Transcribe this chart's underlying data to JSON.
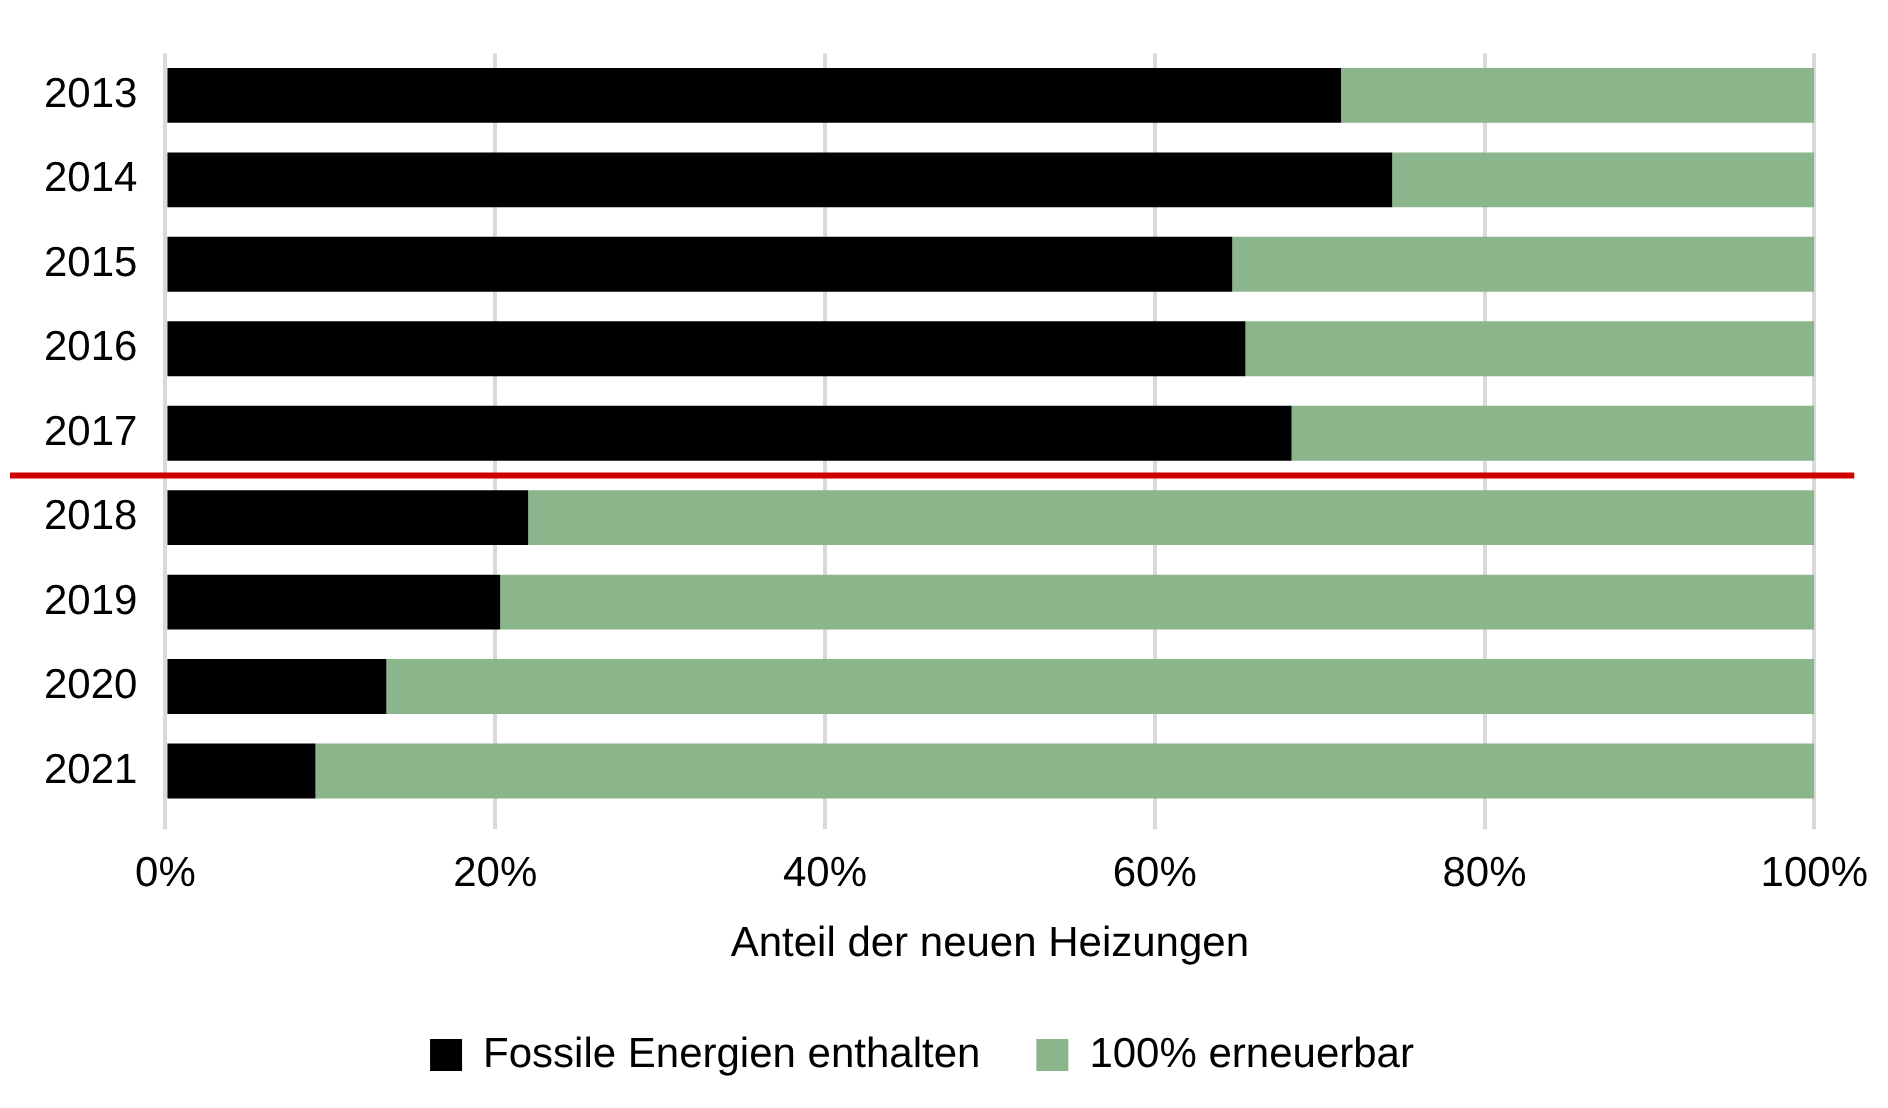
{
  "chart_data": {
    "type": "bar",
    "orientation": "horizontal",
    "stacked": true,
    "x": [
      2013,
      2014,
      2015,
      2016,
      2017,
      2018,
      2019,
      2020,
      2021
    ],
    "series": [
      {
        "name": "Fossile Energien enthalten",
        "color": "#000000",
        "values": [
          71.3,
          74.4,
          64.7,
          65.5,
          68.3,
          22.0,
          20.3,
          13.4,
          9.1
        ]
      },
      {
        "name": "100% erneuerbar",
        "color": "#8bb58b",
        "values": [
          28.7,
          25.6,
          35.3,
          34.5,
          31.7,
          78.0,
          79.7,
          86.6,
          90.9
        ]
      }
    ],
    "xlim": [
      0,
      100
    ],
    "xticks": [
      {
        "value": 0,
        "label": "0%"
      },
      {
        "value": 20,
        "label": "20%"
      },
      {
        "value": 40,
        "label": "40%"
      },
      {
        "value": 60,
        "label": "60%"
      },
      {
        "value": 80,
        "label": "80%"
      },
      {
        "value": 100,
        "label": "100%"
      }
    ],
    "ylim": [
      2021.5,
      2012.5
    ],
    "yticks": [
      2013,
      2014,
      2015,
      2016,
      2017,
      2018,
      2019,
      2020,
      2021
    ],
    "xlabel": "Anteil der neuen Heizungen",
    "grid": "x",
    "legend": "bottom",
    "ref_lines": [
      {
        "axis": "y",
        "value": 2017.5,
        "color": "#d00000"
      }
    ]
  }
}
